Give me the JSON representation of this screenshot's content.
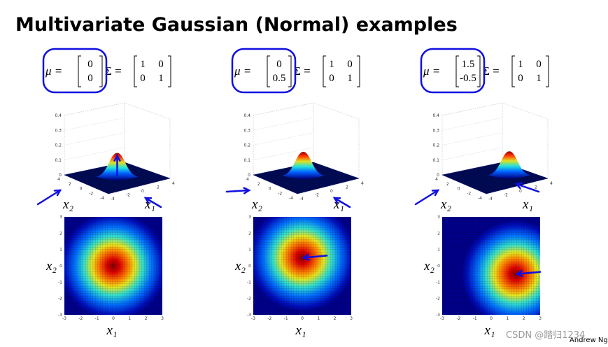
{
  "title": "Multivariate Gaussian (Normal) examples",
  "panels": [
    {
      "mu": [
        0,
        0
      ],
      "sigma": [
        [
          1,
          0
        ],
        [
          0,
          1
        ]
      ]
    },
    {
      "mu": [
        0,
        0.5
      ],
      "sigma": [
        [
          1,
          0
        ],
        [
          0,
          1
        ]
      ]
    },
    {
      "mu": [
        1.5,
        -0.5
      ],
      "sigma": [
        [
          1,
          0
        ],
        [
          0,
          1
        ]
      ]
    }
  ],
  "mu_label": "μ =",
  "sigma_label": "Σ =",
  "x1_label": "x₁",
  "x2_label": "x₂",
  "surface_z_ticks": [
    0,
    0.1,
    0.2,
    0.3,
    0.4
  ],
  "surface_xy_ticks": [
    -4,
    -2,
    0,
    2,
    4
  ],
  "heatmap_ticks": [
    -3,
    -2,
    -1,
    0,
    1,
    2,
    3
  ],
  "footer": "Andrew Ng",
  "watermark": "CSDN @踏归1234"
}
